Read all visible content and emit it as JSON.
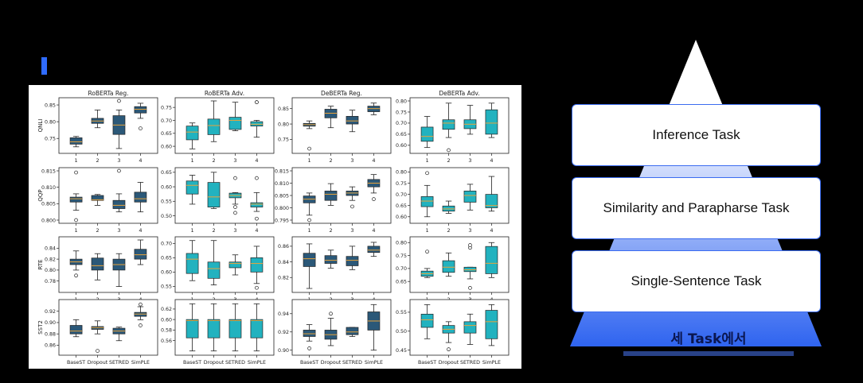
{
  "header": {
    "accent_color": "#2f6bff"
  },
  "pyramid": {
    "tasks": [
      {
        "label": "Inference Task"
      },
      {
        "label": "Similarity and Parapharse Task"
      },
      {
        "label": "Single-Sentence Task"
      }
    ],
    "caption": "세 Task에서",
    "gradient": [
      "#ffffff",
      "#2f64f0"
    ]
  },
  "chart_data": {
    "type": "boxplot",
    "columns": [
      "RoBERTa Reg.",
      "RoBERTa Adv.",
      "DeBERTa Reg.",
      "DeBERTa Adv."
    ],
    "rows": [
      "QNLI",
      "QQP",
      "RTE",
      "SST2"
    ],
    "methods_numbered": [
      "1",
      "2",
      "3",
      "4"
    ],
    "methods_named": [
      "BaseST",
      "Dropout",
      "SETRED",
      "SimPLE"
    ],
    "colors": {
      "reg_box": "#2b5878",
      "adv_box": "#22b2bf",
      "median": "#e8a33a"
    },
    "panels": [
      {
        "row": "QNLI",
        "col": "RoBERTa Reg.",
        "ylim": [
          0.715,
          0.862
        ],
        "yticks": [
          "0.75",
          "0.80",
          "0.85"
        ],
        "yvals": [
          0.75,
          0.8,
          0.85
        ],
        "boxes": [
          {
            "min": 0.725,
            "q1": 0.733,
            "med": 0.74,
            "q3": 0.752,
            "max": 0.756,
            "out": []
          },
          {
            "min": 0.782,
            "q1": 0.795,
            "med": 0.802,
            "q3": 0.81,
            "max": 0.835,
            "out": []
          },
          {
            "min": 0.72,
            "q1": 0.762,
            "med": 0.79,
            "q3": 0.818,
            "max": 0.835,
            "out": [
              0.862
            ]
          },
          {
            "min": 0.81,
            "q1": 0.826,
            "med": 0.837,
            "q3": 0.845,
            "max": 0.855,
            "out": [
              0.78
            ]
          }
        ]
      },
      {
        "row": "QNLI",
        "col": "RoBERTa Adv.",
        "ylim": [
          0.585,
          0.775
        ],
        "yticks": [
          "0.60",
          "0.65",
          "0.70",
          "0.75"
        ],
        "yvals": [
          0.6,
          0.65,
          0.7,
          0.75
        ],
        "boxes": [
          {
            "min": 0.59,
            "q1": 0.625,
            "med": 0.655,
            "q3": 0.678,
            "max": 0.69,
            "out": []
          },
          {
            "min": 0.618,
            "q1": 0.645,
            "med": 0.68,
            "q3": 0.705,
            "max": 0.775,
            "out": []
          },
          {
            "min": 0.66,
            "q1": 0.665,
            "med": 0.7,
            "q3": 0.712,
            "max": 0.77,
            "out": []
          },
          {
            "min": 0.635,
            "q1": 0.678,
            "med": 0.685,
            "q3": 0.695,
            "max": 0.7,
            "out": [
              0.77,
              0.77
            ]
          }
        ]
      },
      {
        "row": "QNLI",
        "col": "DeBERTa Reg.",
        "ylim": [
          0.715,
          0.875
        ],
        "yticks": [
          "0.75",
          "0.80",
          "0.85"
        ],
        "yvals": [
          0.75,
          0.8,
          0.85
        ],
        "boxes": [
          {
            "min": 0.785,
            "q1": 0.793,
            "med": 0.798,
            "q3": 0.802,
            "max": 0.81,
            "out": [
              0.72
            ]
          },
          {
            "min": 0.788,
            "q1": 0.82,
            "med": 0.835,
            "q3": 0.848,
            "max": 0.858,
            "out": []
          },
          {
            "min": 0.775,
            "q1": 0.8,
            "med": 0.81,
            "q3": 0.825,
            "max": 0.845,
            "out": []
          },
          {
            "min": 0.83,
            "q1": 0.84,
            "med": 0.85,
            "q3": 0.858,
            "max": 0.868,
            "out": []
          }
        ]
      },
      {
        "row": "QNLI",
        "col": "DeBERTa Adv.",
        "ylim": [
          0.578,
          0.8
        ],
        "yticks": [
          "0.60",
          "0.65",
          "0.70",
          "0.75",
          "0.80"
        ],
        "yvals": [
          0.6,
          0.65,
          0.7,
          0.75,
          0.8
        ],
        "boxes": [
          {
            "min": 0.59,
            "q1": 0.618,
            "med": 0.64,
            "q3": 0.682,
            "max": 0.73,
            "out": []
          },
          {
            "min": 0.635,
            "q1": 0.672,
            "med": 0.7,
            "q3": 0.715,
            "max": 0.79,
            "out": [
              0.578
            ]
          },
          {
            "min": 0.65,
            "q1": 0.675,
            "med": 0.695,
            "q3": 0.715,
            "max": 0.78,
            "out": []
          },
          {
            "min": 0.635,
            "q1": 0.65,
            "med": 0.7,
            "q3": 0.76,
            "max": 0.79,
            "out": []
          }
        ]
      },
      {
        "row": "QQP",
        "col": "RoBERTa Reg.",
        "ylim": [
          0.8,
          0.815
        ],
        "yticks": [
          "0.800",
          "0.805",
          "0.810",
          "0.815"
        ],
        "yvals": [
          0.8,
          0.805,
          0.81,
          0.815
        ],
        "boxes": [
          {
            "min": 0.803,
            "q1": 0.8055,
            "med": 0.8065,
            "q3": 0.807,
            "max": 0.808,
            "out": [
              0.8145,
              0.8
            ]
          },
          {
            "min": 0.8045,
            "q1": 0.806,
            "med": 0.8062,
            "q3": 0.8075,
            "max": 0.8078,
            "out": []
          },
          {
            "min": 0.8025,
            "q1": 0.8035,
            "med": 0.8045,
            "q3": 0.806,
            "max": 0.808,
            "out": [
              0.815
            ]
          },
          {
            "min": 0.8025,
            "q1": 0.8055,
            "med": 0.8065,
            "q3": 0.8085,
            "max": 0.8115,
            "out": []
          }
        ]
      },
      {
        "row": "QQP",
        "col": "RoBERTa Adv.",
        "ylim": [
          0.485,
          0.655
        ],
        "yticks": [
          "0.50",
          "0.55",
          "0.60",
          "0.65"
        ],
        "yvals": [
          0.5,
          0.55,
          0.6,
          0.65
        ],
        "boxes": [
          {
            "min": 0.54,
            "q1": 0.575,
            "med": 0.605,
            "q3": 0.62,
            "max": 0.64,
            "out": []
          },
          {
            "min": 0.525,
            "q1": 0.53,
            "med": 0.565,
            "q3": 0.615,
            "max": 0.65,
            "out": []
          },
          {
            "min": 0.54,
            "q1": 0.562,
            "med": 0.57,
            "q3": 0.578,
            "max": 0.58,
            "out": [
              0.63,
              0.53,
              0.51
            ]
          },
          {
            "min": 0.515,
            "q1": 0.53,
            "med": 0.54,
            "q3": 0.545,
            "max": 0.58,
            "out": [
              0.63,
              0.49
            ]
          }
        ]
      },
      {
        "row": "QQP",
        "col": "DeBERTa Reg.",
        "ylim": [
          0.795,
          0.815
        ],
        "yticks": [
          "0.795",
          "0.800",
          "0.805",
          "0.810",
          "0.815"
        ],
        "yvals": [
          0.795,
          0.8,
          0.805,
          0.81,
          0.815
        ],
        "boxes": [
          {
            "min": 0.797,
            "q1": 0.802,
            "med": 0.8035,
            "q3": 0.8048,
            "max": 0.806,
            "out": [
              0.795
            ]
          },
          {
            "min": 0.801,
            "q1": 0.803,
            "med": 0.8055,
            "q3": 0.8068,
            "max": 0.8098,
            "out": []
          },
          {
            "min": 0.803,
            "q1": 0.805,
            "med": 0.806,
            "q3": 0.8068,
            "max": 0.8085,
            "out": [
              0.8005
            ]
          },
          {
            "min": 0.806,
            "q1": 0.8085,
            "med": 0.81,
            "q3": 0.8115,
            "max": 0.8135,
            "out": [
              0.8035
            ]
          }
        ]
      },
      {
        "row": "QQP",
        "col": "DeBERTa Adv.",
        "ylim": [
          0.585,
          0.805
        ],
        "yticks": [
          "0.60",
          "0.65",
          "0.70",
          "0.75",
          "0.80"
        ],
        "yvals": [
          0.6,
          0.65,
          0.7,
          0.75,
          0.8
        ],
        "boxes": [
          {
            "min": 0.6,
            "q1": 0.645,
            "med": 0.67,
            "q3": 0.69,
            "max": 0.74,
            "out": [
              0.795
            ]
          },
          {
            "min": 0.615,
            "q1": 0.625,
            "med": 0.635,
            "q3": 0.648,
            "max": 0.67,
            "out": []
          },
          {
            "min": 0.63,
            "q1": 0.665,
            "med": 0.695,
            "q3": 0.715,
            "max": 0.745,
            "out": []
          },
          {
            "min": 0.625,
            "q1": 0.64,
            "med": 0.65,
            "q3": 0.7,
            "max": 0.78,
            "out": []
          }
        ]
      },
      {
        "row": "RTE",
        "col": "RoBERTa Reg.",
        "ylim": [
          0.765,
          0.855
        ],
        "yticks": [
          "0.78",
          "0.80",
          "0.82",
          "0.84"
        ],
        "yvals": [
          0.78,
          0.8,
          0.82,
          0.84
        ],
        "boxes": [
          {
            "min": 0.8,
            "q1": 0.81,
            "med": 0.815,
            "q3": 0.82,
            "max": 0.835,
            "out": [
              0.79
            ]
          },
          {
            "min": 0.782,
            "q1": 0.8,
            "med": 0.808,
            "q3": 0.822,
            "max": 0.83,
            "out": []
          },
          {
            "min": 0.77,
            "q1": 0.8,
            "med": 0.81,
            "q3": 0.82,
            "max": 0.83,
            "out": []
          },
          {
            "min": 0.81,
            "q1": 0.82,
            "med": 0.828,
            "q3": 0.838,
            "max": 0.855,
            "out": []
          }
        ]
      },
      {
        "row": "RTE",
        "col": "RoBERTa Adv.",
        "ylim": [
          0.54,
          0.712
        ],
        "yticks": [
          "0.55",
          "0.60",
          "0.65",
          "0.70"
        ],
        "yvals": [
          0.55,
          0.6,
          0.65,
          0.7
        ],
        "boxes": [
          {
            "min": 0.57,
            "q1": 0.595,
            "med": 0.645,
            "q3": 0.665,
            "max": 0.71,
            "out": []
          },
          {
            "min": 0.555,
            "q1": 0.578,
            "med": 0.612,
            "q3": 0.635,
            "max": 0.71,
            "out": []
          },
          {
            "min": 0.59,
            "q1": 0.615,
            "med": 0.63,
            "q3": 0.635,
            "max": 0.66,
            "out": []
          },
          {
            "min": 0.56,
            "q1": 0.6,
            "med": 0.63,
            "q3": 0.65,
            "max": 0.69,
            "out": [
              0.545
            ]
          }
        ]
      },
      {
        "row": "RTE",
        "col": "DeBERTa Reg.",
        "ylim": [
          0.805,
          0.868
        ],
        "yticks": [
          "0.82",
          "0.84",
          "0.86"
        ],
        "yvals": [
          0.82,
          0.84,
          0.86
        ],
        "boxes": [
          {
            "min": 0.806,
            "q1": 0.834,
            "med": 0.844,
            "q3": 0.851,
            "max": 0.863,
            "out": []
          },
          {
            "min": 0.832,
            "q1": 0.838,
            "med": 0.842,
            "q3": 0.848,
            "max": 0.855,
            "out": []
          },
          {
            "min": 0.83,
            "q1": 0.835,
            "med": 0.842,
            "q3": 0.847,
            "max": 0.86,
            "out": []
          },
          {
            "min": 0.847,
            "q1": 0.852,
            "med": 0.855,
            "q3": 0.86,
            "max": 0.865,
            "out": []
          }
        ]
      },
      {
        "row": "RTE",
        "col": "DeBERTa Adv.",
        "ylim": [
          0.62,
          0.81
        ],
        "yticks": [
          "0.65",
          "0.70",
          "0.75",
          "0.80"
        ],
        "yvals": [
          0.65,
          0.7,
          0.75,
          0.8
        ],
        "boxes": [
          {
            "min": 0.665,
            "q1": 0.67,
            "med": 0.68,
            "q3": 0.69,
            "max": 0.7,
            "out": [
              0.765
            ]
          },
          {
            "min": 0.67,
            "q1": 0.685,
            "med": 0.705,
            "q3": 0.73,
            "max": 0.76,
            "out": []
          },
          {
            "min": 0.66,
            "q1": 0.688,
            "med": 0.695,
            "q3": 0.705,
            "max": 0.705,
            "out": [
              0.78,
              0.79,
              0.625
            ]
          },
          {
            "min": 0.665,
            "q1": 0.68,
            "med": 0.72,
            "q3": 0.785,
            "max": 0.8,
            "out": []
          }
        ]
      },
      {
        "row": "SST2",
        "col": "RoBERTa Reg.",
        "ylim": [
          0.848,
          0.935
        ],
        "yticks": [
          "0.86",
          "0.88",
          "0.90",
          "0.92"
        ],
        "yvals": [
          0.86,
          0.88,
          0.9,
          0.92
        ],
        "boxes": [
          {
            "min": 0.875,
            "q1": 0.88,
            "med": 0.885,
            "q3": 0.895,
            "max": 0.905,
            "out": []
          },
          {
            "min": 0.88,
            "q1": 0.888,
            "med": 0.891,
            "q3": 0.893,
            "max": 0.903,
            "out": [
              0.85
            ]
          },
          {
            "min": 0.868,
            "q1": 0.88,
            "med": 0.885,
            "q3": 0.89,
            "max": 0.892,
            "out": []
          },
          {
            "min": 0.905,
            "q1": 0.911,
            "med": 0.915,
            "q3": 0.918,
            "max": 0.928,
            "out": [
              0.932,
              0.895
            ]
          }
        ]
      },
      {
        "row": "SST2",
        "col": "RoBERTa Adv.",
        "ylim": [
          0.538,
          0.632
        ],
        "yticks": [
          "0.56",
          "0.58",
          "0.60",
          "0.62"
        ],
        "yvals": [
          0.56,
          0.58,
          0.6,
          0.62
        ],
        "boxes": [
          {
            "min": 0.54,
            "q1": 0.565,
            "med": 0.598,
            "q3": 0.6,
            "max": 0.63,
            "out": []
          },
          {
            "min": 0.54,
            "q1": 0.565,
            "med": 0.598,
            "q3": 0.6,
            "max": 0.63,
            "out": []
          },
          {
            "min": 0.54,
            "q1": 0.565,
            "med": 0.598,
            "q3": 0.6,
            "max": 0.63,
            "out": []
          },
          {
            "min": 0.54,
            "q1": 0.565,
            "med": 0.598,
            "q3": 0.6,
            "max": 0.63,
            "out": []
          }
        ]
      },
      {
        "row": "SST2",
        "col": "DeBERTa Reg.",
        "ylim": [
          0.898,
          0.952
        ],
        "yticks": [
          "0.90",
          "0.92",
          "0.94"
        ],
        "yvals": [
          0.9,
          0.92,
          0.94
        ],
        "boxes": [
          {
            "min": 0.91,
            "q1": 0.915,
            "med": 0.918,
            "q3": 0.922,
            "max": 0.928,
            "out": [
              0.902
            ]
          },
          {
            "min": 0.905,
            "q1": 0.912,
            "med": 0.917,
            "q3": 0.922,
            "max": 0.935,
            "out": [
              0.94
            ]
          },
          {
            "min": 0.915,
            "q1": 0.917,
            "med": 0.92,
            "q3": 0.925,
            "max": 0.925,
            "out": []
          },
          {
            "min": 0.9,
            "q1": 0.922,
            "med": 0.932,
            "q3": 0.942,
            "max": 0.95,
            "out": []
          }
        ]
      },
      {
        "row": "SST2",
        "col": "DeBERTa Adv.",
        "ylim": [
          0.445,
          0.575
        ],
        "yticks": [
          "0.45",
          "0.50",
          "0.55"
        ],
        "yvals": [
          0.45,
          0.5,
          0.55
        ],
        "boxes": [
          {
            "min": 0.48,
            "q1": 0.51,
            "med": 0.53,
            "q3": 0.545,
            "max": 0.57,
            "out": []
          },
          {
            "min": 0.47,
            "q1": 0.495,
            "med": 0.505,
            "q3": 0.515,
            "max": 0.525,
            "out": [
              0.452
            ]
          },
          {
            "min": 0.465,
            "q1": 0.495,
            "med": 0.515,
            "q3": 0.525,
            "max": 0.545,
            "out": []
          },
          {
            "min": 0.462,
            "q1": 0.48,
            "med": 0.525,
            "q3": 0.555,
            "max": 0.57,
            "out": []
          }
        ]
      }
    ]
  }
}
